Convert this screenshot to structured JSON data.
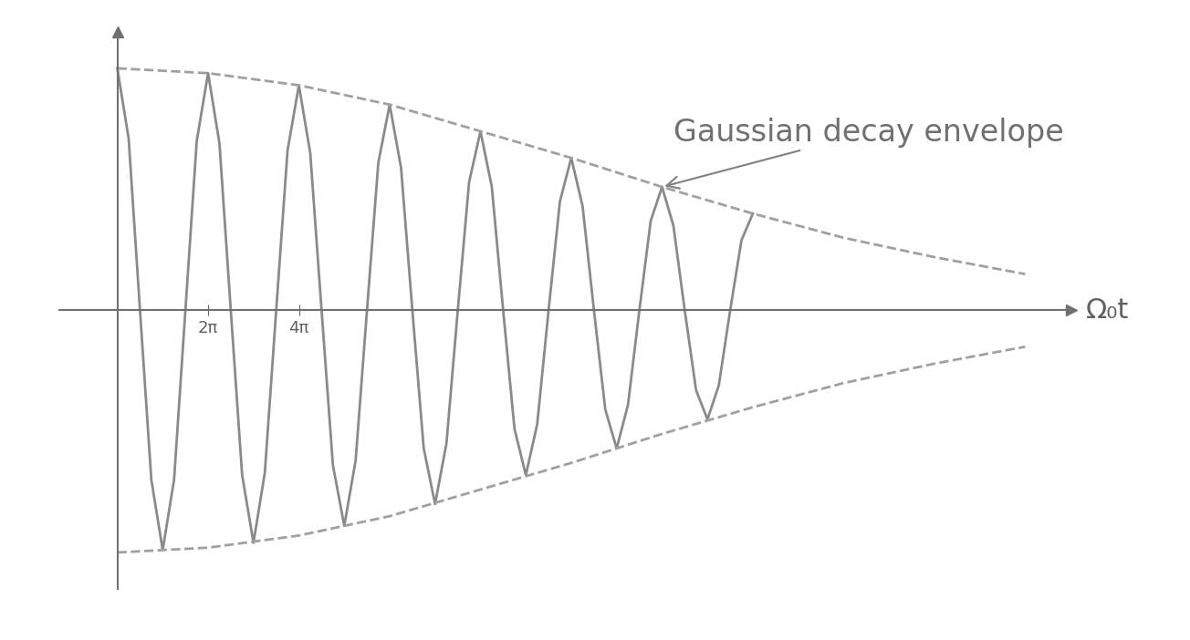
{
  "chart_data": {
    "type": "line",
    "x_label": "Ω₀t",
    "annotation": "Gaussian decay envelope",
    "xlim": [
      -4,
      66
    ],
    "ylim": [
      -1.15,
      1.15
    ],
    "xticks": [
      {
        "value": 6.283,
        "label": "2π"
      },
      {
        "value": 12.566,
        "label": "4π"
      }
    ],
    "yticks": [],
    "tick_labels": "x",
    "grid": false,
    "series": [
      {
        "color": "#8a8a8a",
        "line_style": "solid",
        "x": [
          0,
          0.785,
          1.571,
          2.356,
          3.142,
          3.927,
          4.712,
          5.498,
          6.283,
          7.069,
          7.854,
          8.639,
          9.425,
          10.21,
          10.996,
          11.781,
          12.566,
          13.352,
          14.137,
          14.923,
          15.708,
          16.493,
          17.279,
          18.064,
          18.85,
          19.635,
          20.42,
          21.206,
          21.991,
          22.777,
          23.562,
          24.347,
          25.133,
          25.918,
          26.704,
          27.489,
          28.274,
          29.06,
          29.845,
          30.631,
          31.416,
          32.201,
          32.987,
          33.772,
          34.558,
          35.343,
          36.128,
          36.914,
          37.699,
          38.485,
          39.27,
          40.055,
          40.841,
          41.626,
          42.412,
          43.197,
          43.982
        ],
        "values": [
          1.0,
          0.71,
          0,
          -0.7,
          -0.99,
          -0.7,
          0,
          0.7,
          0.98,
          0.69,
          0,
          -0.68,
          -0.96,
          -0.67,
          0,
          0.66,
          0.93,
          0.65,
          0,
          -0.64,
          -0.89,
          -0.62,
          0,
          0.61,
          0.85,
          0.59,
          0,
          -0.57,
          -0.8,
          -0.55,
          0,
          0.53,
          0.74,
          0.51,
          0,
          -0.49,
          -0.68,
          -0.47,
          0,
          0.45,
          0.63,
          0.43,
          0,
          -0.41,
          -0.57,
          -0.39,
          0,
          0.37,
          0.51,
          0.35,
          0,
          -0.33,
          -0.45,
          -0.31,
          0,
          0.29,
          0.4
        ]
      },
      {
        "color": "#a0a0a0",
        "line_style": "dashed",
        "x": [
          0,
          6.283,
          12.566,
          18.85,
          25.133,
          31.416,
          37.699,
          43.982,
          50.265,
          56.549,
          62.832
        ],
        "values": [
          1.0,
          0.98,
          0.93,
          0.85,
          0.74,
          0.63,
          0.51,
          0.4,
          0.3,
          0.22,
          0.15
        ]
      },
      {
        "color": "#a0a0a0",
        "line_style": "dashed",
        "x": [
          0,
          6.283,
          12.566,
          18.85,
          25.133,
          31.416,
          37.699,
          43.982,
          50.265,
          56.549,
          62.832
        ],
        "values": [
          -1.0,
          -0.98,
          -0.93,
          -0.85,
          -0.74,
          -0.63,
          -0.51,
          -0.4,
          -0.3,
          -0.22,
          -0.15
        ]
      }
    ]
  }
}
